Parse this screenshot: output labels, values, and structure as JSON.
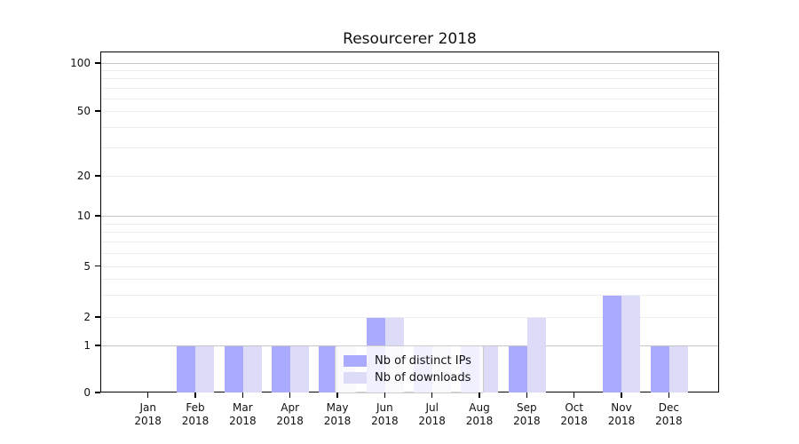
{
  "title": "Resourcerer 2018",
  "chart_data": {
    "type": "bar",
    "title": "Resourcerer 2018",
    "categories": [
      "Jan 2018",
      "Feb 2018",
      "Mar 2018",
      "Apr 2018",
      "May 2018",
      "Jun 2018",
      "Jul 2018",
      "Aug 2018",
      "Sep 2018",
      "Oct 2018",
      "Nov 2018",
      "Dec 2018"
    ],
    "x_tick_months": [
      "Jan",
      "Feb",
      "Mar",
      "Apr",
      "May",
      "Jun",
      "Jul",
      "Aug",
      "Sep",
      "Oct",
      "Nov",
      "Dec"
    ],
    "x_tick_year": "2018",
    "series": [
      {
        "name": "Nb of distinct IPs",
        "color": "#aaaaff",
        "values": [
          0,
          1,
          1,
          1,
          1,
          2,
          1,
          1,
          1,
          0,
          3,
          1
        ]
      },
      {
        "name": "Nb of downloads",
        "color": "#dcdcf8",
        "values": [
          0,
          1,
          1,
          1,
          1,
          2,
          1,
          1,
          2,
          0,
          3,
          1
        ]
      }
    ],
    "yscale": "symlog",
    "y_ticks": [
      0,
      1,
      2,
      5,
      10,
      20,
      50,
      100
    ],
    "y_gridlines_dark": [
      1,
      10,
      100
    ],
    "y_gridlines_light": [
      2,
      3,
      4,
      5,
      6,
      7,
      8,
      9,
      20,
      30,
      40,
      50,
      60,
      70,
      80,
      90
    ],
    "ylim": [
      0,
      115
    ],
    "xlabel": "",
    "ylabel": "",
    "grid": "horizontal",
    "legend": {
      "position": "lower center",
      "items": [
        "Nb of distinct IPs",
        "Nb of downloads"
      ]
    }
  },
  "colors": {
    "bar_distinct_ips": "#aaaaff",
    "bar_downloads": "#dcdcf8",
    "grid_major": "#c6c6c6",
    "grid_minor": "#ededed",
    "spine": "#000000",
    "legend_border": "#cccccc"
  }
}
